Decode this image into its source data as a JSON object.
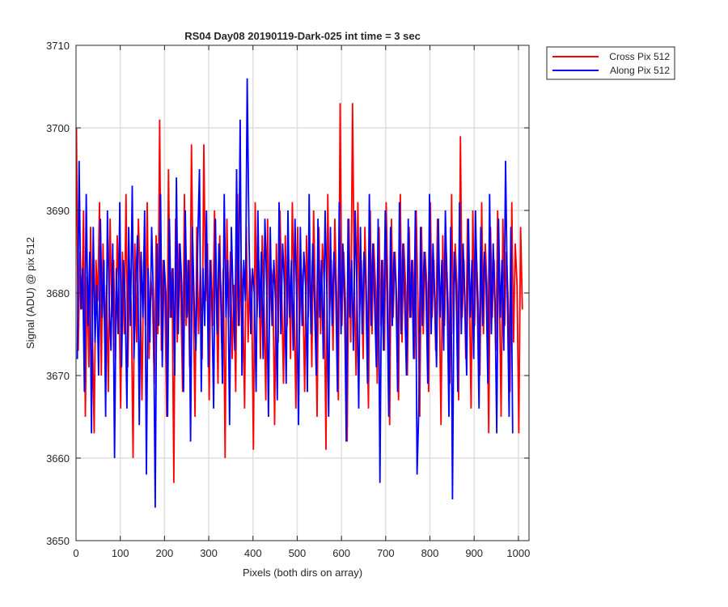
{
  "chart_data": {
    "type": "line",
    "title": "RS04 Day08 20190119-Dark-025 int time = 3 sec",
    "xlabel": "Pixels (both dirs on array)",
    "ylabel": "Signal (ADU) @ pix 512",
    "xlim": [
      0,
      1024
    ],
    "ylim": [
      3650,
      3710
    ],
    "xticks": [
      0,
      100,
      200,
      300,
      400,
      500,
      600,
      700,
      800,
      900,
      1000
    ],
    "yticks": [
      3650,
      3660,
      3670,
      3680,
      3690,
      3700,
      3710
    ],
    "grid": true,
    "legend_position": "outside-top-right",
    "series": [
      {
        "name": "Cross Pix 512",
        "color": "#ff0000",
        "sampling": "every 4th pixel, x = 1, 5, 9, ... (y values estimated from plot)",
        "x_start": 1,
        "x_step": 4,
        "values": [
          3700,
          3673,
          3685,
          3678,
          3690,
          3665,
          3682,
          3671,
          3688,
          3676,
          3663,
          3684,
          3679,
          3691,
          3670,
          3686,
          3674,
          3681,
          3668,
          3689,
          3677,
          3684,
          3672,
          3687,
          3680,
          3666,
          3685,
          3675,
          3692,
          3671,
          3683,
          3678,
          3660,
          3686,
          3674,
          3689,
          3681,
          3667,
          3684,
          3676,
          3691,
          3672,
          3682,
          3679,
          3669,
          3687,
          3675,
          3701,
          3673,
          3684,
          3680,
          3665,
          3695,
          3677,
          3683,
          3657,
          3689,
          3674,
          3686,
          3679,
          3668,
          3692,
          3676,
          3684,
          3671,
          3698,
          3680,
          3665,
          3688,
          3675,
          3683,
          3672,
          3698,
          3679,
          3686,
          3667,
          3684,
          3676,
          3690,
          3680,
          3669,
          3687,
          3674,
          3683,
          3660,
          3689,
          3677,
          3685,
          3672,
          3681,
          3668,
          3692,
          3676,
          3684,
          3679,
          3666,
          3688,
          3674,
          3683,
          3680,
          3661,
          3691,
          3677,
          3684,
          3672,
          3687,
          3679,
          3667,
          3689,
          3676,
          3683,
          3681,
          3664,
          3686,
          3674,
          3690,
          3680,
          3669,
          3687,
          3676,
          3684,
          3672,
          3691,
          3679,
          3666,
          3688,
          3675,
          3683,
          3680,
          3668,
          3687,
          3677,
          3684,
          3671,
          3690,
          3679,
          3665,
          3688,
          3675,
          3686,
          3681,
          3661,
          3692,
          3677,
          3684,
          3673,
          3689,
          3680,
          3667,
          3703,
          3676,
          3685,
          3679,
          3662,
          3689,
          3674,
          3703,
          3681,
          3670,
          3691,
          3677,
          3684,
          3672,
          3688,
          3679,
          3666,
          3690,
          3675,
          3686,
          3681,
          3669,
          3688,
          3676,
          3684,
          3673,
          3691,
          3680,
          3664,
          3689,
          3677,
          3685,
          3679,
          3667,
          3692,
          3674,
          3686,
          3681,
          3670,
          3688,
          3677,
          3684,
          3672,
          3690,
          3679,
          3665,
          3688,
          3675,
          3685,
          3681,
          3668,
          3691,
          3677,
          3684,
          3673,
          3689,
          3680,
          3664,
          3687,
          3676,
          3685,
          3679,
          3669,
          3692,
          3675,
          3686,
          3681,
          3667,
          3699,
          3677,
          3684,
          3672,
          3689,
          3680,
          3666,
          3690,
          3676,
          3685,
          3679,
          3670,
          3691,
          3675,
          3686,
          3681,
          3663,
          3688,
          3677,
          3684,
          3673,
          3690,
          3680,
          3665,
          3689,
          3676,
          3685,
          3679,
          3668,
          3691,
          3674,
          3686,
          3681,
          3663,
          3688,
          3678
        ]
      },
      {
        "name": "Along Pix 512",
        "color": "#0000ff",
        "sampling": "every 4th pixel, x = 3, 7, 11, ... (y values estimated from plot)",
        "x_start": 3,
        "x_step": 4,
        "values": [
          3672,
          3696,
          3678,
          3683,
          3668,
          3692,
          3676,
          3685,
          3663,
          3688,
          3674,
          3681,
          3670,
          3689,
          3677,
          3684,
          3665,
          3690,
          3679,
          3673,
          3686,
          3660,
          3683,
          3675,
          3691,
          3671,
          3684,
          3679,
          3666,
          3688,
          3676,
          3693,
          3672,
          3681,
          3687,
          3664,
          3685,
          3677,
          3690,
          3658,
          3683,
          3674,
          3688,
          3679,
          3654,
          3686,
          3676,
          3692,
          3671,
          3684,
          3680,
          3665,
          3689,
          3677,
          3683,
          3670,
          3694,
          3675,
          3686,
          3681,
          3668,
          3690,
          3677,
          3684,
          3662,
          3688,
          3679,
          3673,
          3686,
          3695,
          3668,
          3683,
          3676,
          3690,
          3671,
          3684,
          3679,
          3666,
          3689,
          3675,
          3686,
          3681,
          3669,
          3692,
          3677,
          3684,
          3664,
          3688,
          3680,
          3673,
          3695,
          3676,
          3701,
          3670,
          3684,
          3679,
          3706,
          3687,
          3675,
          3683,
          3680,
          3668,
          3690,
          3677,
          3685,
          3672,
          3689,
          3681,
          3665,
          3688,
          3676,
          3684,
          3679,
          3667,
          3691,
          3675,
          3686,
          3681,
          3669,
          3690,
          3677,
          3684,
          3673,
          3689,
          3679,
          3664,
          3688,
          3676,
          3685,
          3681,
          3668,
          3692,
          3675,
          3686,
          3679,
          3670,
          3689,
          3677,
          3684,
          3672,
          3690,
          3680,
          3665,
          3688,
          3676,
          3685,
          3681,
          3668,
          3691,
          3675,
          3686,
          3679,
          3662,
          3689,
          3677,
          3684,
          3673,
          3690,
          3680,
          3666,
          3688,
          3675,
          3685,
          3681,
          3669,
          3692,
          3676,
          3686,
          3679,
          3671,
          3689,
          3657,
          3684,
          3673,
          3690,
          3680,
          3665,
          3688,
          3676,
          3685,
          3681,
          3668,
          3691,
          3675,
          3686,
          3679,
          3670,
          3689,
          3677,
          3684,
          3672,
          3690,
          3658,
          3666,
          3688,
          3676,
          3685,
          3681,
          3669,
          3692,
          3675,
          3686,
          3679,
          3671,
          3689,
          3677,
          3684,
          3673,
          3690,
          3680,
          3665,
          3688,
          3655,
          3685,
          3681,
          3668,
          3691,
          3675,
          3686,
          3679,
          3670,
          3689,
          3677,
          3684,
          3672,
          3690,
          3680,
          3666,
          3688,
          3676,
          3685,
          3681,
          3669,
          3692,
          3675,
          3686,
          3679,
          3663,
          3689,
          3677,
          3684,
          3673,
          3696,
          3680,
          3665,
          3688,
          3663
        ]
      }
    ]
  }
}
